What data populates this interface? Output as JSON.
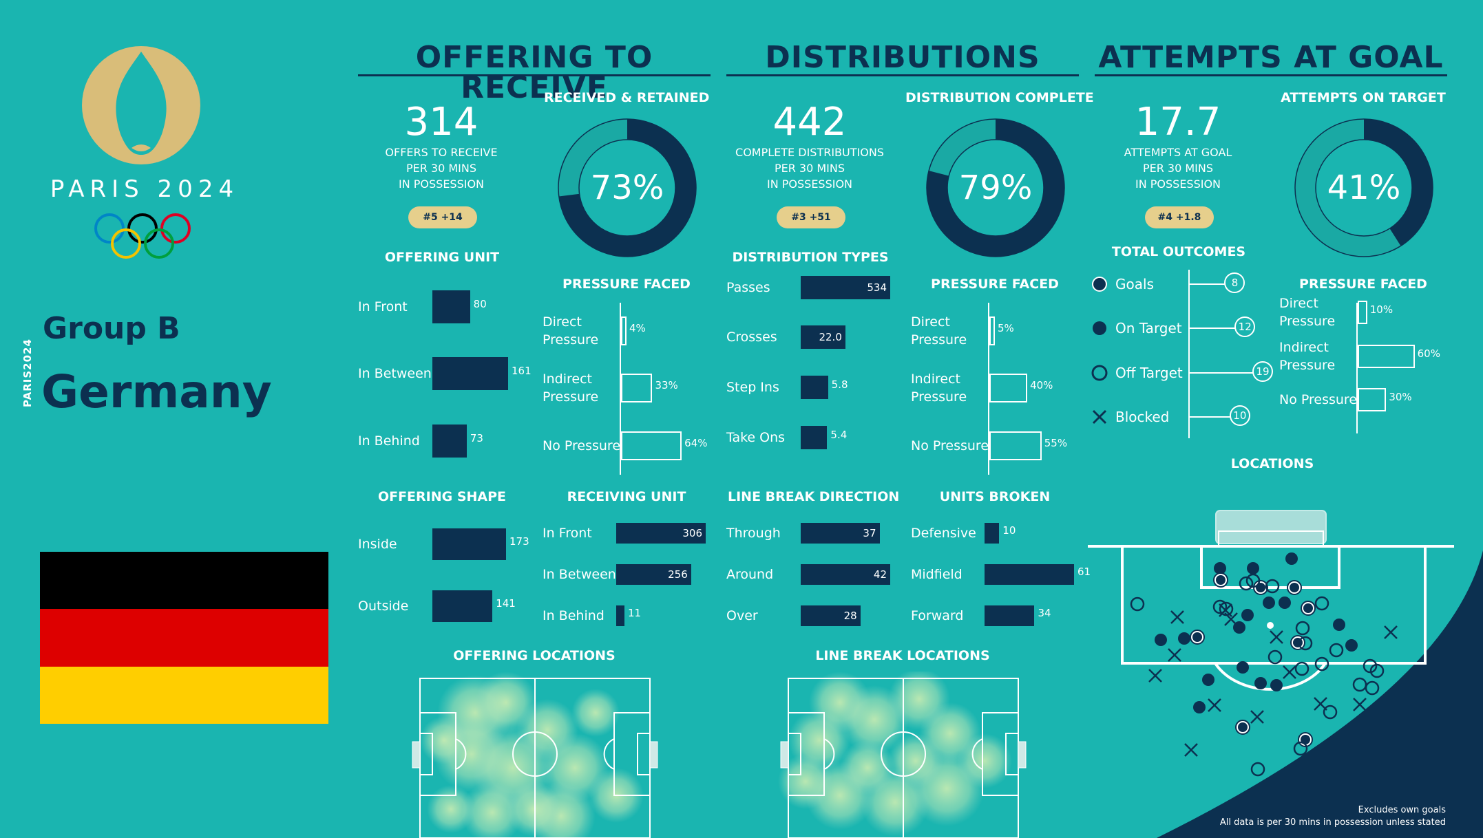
{
  "brand": {
    "logo_text": "PARIS 2024",
    "side_text": "PARIS2024"
  },
  "team": {
    "group": "Group B",
    "name": "Germany",
    "flag_colors": [
      "#000000",
      "#dd0000",
      "#ffce00"
    ]
  },
  "colors": {
    "background": "#1ab5b0",
    "navy": "#0c3050",
    "gold": "#d9bd79",
    "pill": "#e6cf8c"
  },
  "sections": {
    "offering": {
      "title": "OFFERING TO RECEIVE",
      "stat": {
        "value": "314",
        "lines": [
          "OFFERS TO RECEIVE",
          "PER 30 MINS",
          "IN POSSESSION"
        ],
        "rank": "#5 +14"
      },
      "donut": {
        "title": "RECEIVED & RETAINED",
        "pct": 73,
        "label": "73%"
      },
      "unit": {
        "title": "OFFERING UNIT",
        "items": [
          {
            "label": "In Front",
            "value": 80,
            "text": "80"
          },
          {
            "label": "In Between",
            "value": 161,
            "text": "161"
          },
          {
            "label": "In Behind",
            "value": 73,
            "text": "73"
          }
        ]
      },
      "pressure": {
        "title": "PRESSURE FACED",
        "items": [
          {
            "label": "Direct Pressure",
            "value": 4,
            "text": "4%"
          },
          {
            "label": "Indirect Pressure",
            "value": 33,
            "text": "33%"
          },
          {
            "label": "No Pressure",
            "value": 64,
            "text": "64%"
          }
        ]
      },
      "shape": {
        "title": "OFFERING SHAPE",
        "items": [
          {
            "label": "Inside",
            "value": 173,
            "text": "173"
          },
          {
            "label": "Outside",
            "value": 141,
            "text": "141"
          }
        ]
      },
      "receiving": {
        "title": "RECEIVING UNIT",
        "items": [
          {
            "label": "In Front",
            "value": 306,
            "text": "306"
          },
          {
            "label": "In Between",
            "value": 256,
            "text": "256"
          },
          {
            "label": "In Behind",
            "value": 11,
            "text": "11"
          }
        ]
      },
      "map_title": "OFFERING LOCATIONS"
    },
    "distributions": {
      "title": "DISTRIBUTIONS",
      "stat": {
        "value": "442",
        "lines": [
          "COMPLETE DISTRIBUTIONS",
          "PER 30 MINS",
          "IN POSSESSION"
        ],
        "rank": "#3 +51"
      },
      "donut": {
        "title": "DISTRIBUTION COMPLETE",
        "pct": 79,
        "label": "79%"
      },
      "types": {
        "title": "DISTRIBUTION TYPES",
        "items": [
          {
            "label": "Passes",
            "value": 534,
            "text": "534"
          },
          {
            "label": "Crosses",
            "value": 22.0,
            "text": "22.0"
          },
          {
            "label": "Step Ins",
            "value": 5.8,
            "text": "5.8"
          },
          {
            "label": "Take Ons",
            "value": 5.4,
            "text": "5.4"
          }
        ]
      },
      "pressure": {
        "title": "PRESSURE FACED",
        "items": [
          {
            "label": "Direct Pressure",
            "value": 5,
            "text": "5%"
          },
          {
            "label": "Indirect Pressure",
            "value": 40,
            "text": "40%"
          },
          {
            "label": "No Pressure",
            "value": 55,
            "text": "55%"
          }
        ]
      },
      "direction": {
        "title": "LINE BREAK DIRECTION",
        "items": [
          {
            "label": "Through",
            "value": 37,
            "text": "37"
          },
          {
            "label": "Around",
            "value": 42,
            "text": "42"
          },
          {
            "label": "Over",
            "value": 28,
            "text": "28"
          }
        ]
      },
      "units": {
        "title": "UNITS BROKEN",
        "items": [
          {
            "label": "Defensive",
            "value": 10,
            "text": "10"
          },
          {
            "label": "Midfield",
            "value": 61,
            "text": "61"
          },
          {
            "label": "Forward",
            "value": 34,
            "text": "34"
          }
        ]
      },
      "map_title": "LINE BREAK LOCATIONS"
    },
    "attempts": {
      "title": "ATTEMPTS AT GOAL",
      "stat": {
        "value": "17.7",
        "lines": [
          "ATTEMPTS AT GOAL",
          "PER 30 MINS",
          "IN POSSESSION"
        ],
        "rank": "#4 +1.8"
      },
      "donut": {
        "title": "ATTEMPTS ON TARGET",
        "pct": 41,
        "label": "41%"
      },
      "outcomes": {
        "title": "TOTAL OUTCOMES",
        "items": [
          {
            "label": "Goals",
            "value": 8,
            "text": "8",
            "marker": "goal"
          },
          {
            "label": "On Target",
            "value": 12,
            "text": "12",
            "marker": "filled"
          },
          {
            "label": "Off Target",
            "value": 19,
            "text": "19",
            "marker": "open"
          },
          {
            "label": "Blocked",
            "value": 10,
            "text": "10",
            "marker": "cross"
          }
        ]
      },
      "pressure": {
        "title": "PRESSURE FACED",
        "items": [
          {
            "label": "Direct Pressure",
            "value": 10,
            "text": "10%"
          },
          {
            "label": "Indirect Pressure",
            "value": 60,
            "text": "60%"
          },
          {
            "label": "No Pressure",
            "value": 30,
            "text": "30%"
          }
        ]
      },
      "map_title": "LOCATIONS"
    }
  },
  "notes": [
    "Excludes own goals",
    "All data is per 30 mins in possession unless stated"
  ],
  "chart_data": [
    {
      "type": "pie",
      "title": "RECEIVED & RETAINED",
      "categories": [
        "Received & Retained",
        "Other"
      ],
      "values": [
        73,
        27
      ]
    },
    {
      "type": "bar",
      "title": "OFFERING UNIT",
      "categories": [
        "In Front",
        "In Between",
        "In Behind"
      ],
      "values": [
        80,
        161,
        73
      ]
    },
    {
      "type": "bar",
      "title": "PRESSURE FACED (Offering)",
      "categories": [
        "Direct Pressure",
        "Indirect Pressure",
        "No Pressure"
      ],
      "values": [
        4,
        33,
        64
      ],
      "ylabel": "%"
    },
    {
      "type": "bar",
      "title": "OFFERING SHAPE",
      "categories": [
        "Inside",
        "Outside"
      ],
      "values": [
        173,
        141
      ]
    },
    {
      "type": "bar",
      "title": "RECEIVING UNIT",
      "categories": [
        "In Front",
        "In Between",
        "In Behind"
      ],
      "values": [
        306,
        256,
        11
      ]
    },
    {
      "type": "pie",
      "title": "DISTRIBUTION COMPLETE",
      "categories": [
        "Complete",
        "Incomplete"
      ],
      "values": [
        79,
        21
      ]
    },
    {
      "type": "bar",
      "title": "DISTRIBUTION TYPES",
      "categories": [
        "Passes",
        "Crosses",
        "Step Ins",
        "Take Ons"
      ],
      "values": [
        534,
        22.0,
        5.8,
        5.4
      ]
    },
    {
      "type": "bar",
      "title": "PRESSURE FACED (Distributions)",
      "categories": [
        "Direct Pressure",
        "Indirect Pressure",
        "No Pressure"
      ],
      "values": [
        5,
        40,
        55
      ],
      "ylabel": "%"
    },
    {
      "type": "bar",
      "title": "LINE BREAK DIRECTION",
      "categories": [
        "Through",
        "Around",
        "Over"
      ],
      "values": [
        37,
        42,
        28
      ]
    },
    {
      "type": "bar",
      "title": "UNITS BROKEN",
      "categories": [
        "Defensive",
        "Midfield",
        "Forward"
      ],
      "values": [
        10,
        61,
        34
      ]
    },
    {
      "type": "pie",
      "title": "ATTEMPTS ON TARGET",
      "categories": [
        "On Target",
        "Other"
      ],
      "values": [
        41,
        59
      ]
    },
    {
      "type": "bar",
      "title": "TOTAL OUTCOMES",
      "categories": [
        "Goals",
        "On Target",
        "Off Target",
        "Blocked"
      ],
      "values": [
        8,
        12,
        19,
        10
      ]
    },
    {
      "type": "bar",
      "title": "PRESSURE FACED (Attempts)",
      "categories": [
        "Direct Pressure",
        "Indirect Pressure",
        "No Pressure"
      ],
      "values": [
        10,
        60,
        30
      ],
      "ylabel": "%"
    }
  ]
}
